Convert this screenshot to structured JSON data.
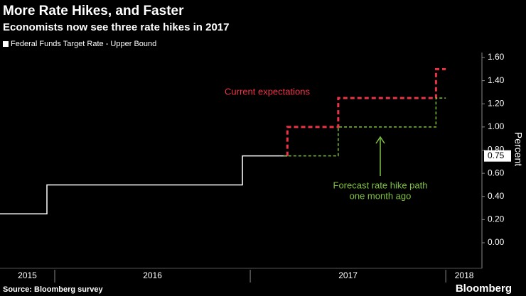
{
  "chart_data": {
    "type": "line",
    "title": "More Rate Hikes, and Faster",
    "subtitle": "Economists now see three rate hikes in 2017",
    "y_label": "Percent",
    "source": "Source: Bloomberg survey",
    "brand": "Bloomberg",
    "xlim": [
      2015.72,
      2018.185
    ],
    "xticks": [
      {
        "value": 2015.5,
        "label": "2015"
      },
      {
        "value": 2016.5,
        "label": "2016"
      },
      {
        "value": 2017.5,
        "label": "2017"
      },
      {
        "value": 2018.5,
        "label": "2018"
      }
    ],
    "ylim": [
      0,
      1.6
    ],
    "yticks": [
      {
        "value": 0,
        "label": "0.00"
      },
      {
        "value": 0.2,
        "label": "0.20"
      },
      {
        "value": 0.4,
        "label": "0.40"
      },
      {
        "value": 0.6,
        "label": "0.60"
      },
      {
        "value": 0.8,
        "label": "0.80"
      },
      {
        "value": 1,
        "label": "1.00"
      },
      {
        "value": 1.2,
        "label": "1.20"
      },
      {
        "value": 1.4,
        "label": "1.40"
      },
      {
        "value": 1.6,
        "label": "1.60"
      }
    ],
    "current_value": 0.75,
    "series": [
      {
        "name": "Federal Funds Target Rate - Upper Bound",
        "color": "#ffffff",
        "dashed": false,
        "x": [
          2015.72,
          2015.96,
          2015.96,
          2016.96,
          2016.96,
          2017.19
        ],
        "values": [
          0.25,
          0.25,
          0.5,
          0.5,
          0.75,
          0.75
        ]
      },
      {
        "color": "#ee3346",
        "dashed": true,
        "x": [
          2017.19,
          2017.19,
          2017.45,
          2017.45,
          2017.95,
          2017.95,
          2018.0
        ],
        "values": [
          0.75,
          1.0,
          1.0,
          1.25,
          1.25,
          1.5,
          1.5
        ]
      },
      {
        "color": "#7fc241",
        "dashed": true,
        "x": [
          2017.17,
          2017.45,
          2017.45,
          2017.95,
          2017.95,
          2018.0
        ],
        "values": [
          0.75,
          0.75,
          1.0,
          1.0,
          1.25,
          1.25
        ]
      }
    ],
    "annotations": [
      {
        "lines": [
          "Current expectations"
        ],
        "color": "#ee3346"
      },
      {
        "lines": [
          "Forecast rate hike path",
          "one month ago"
        ],
        "color": "#7fc241"
      }
    ]
  }
}
